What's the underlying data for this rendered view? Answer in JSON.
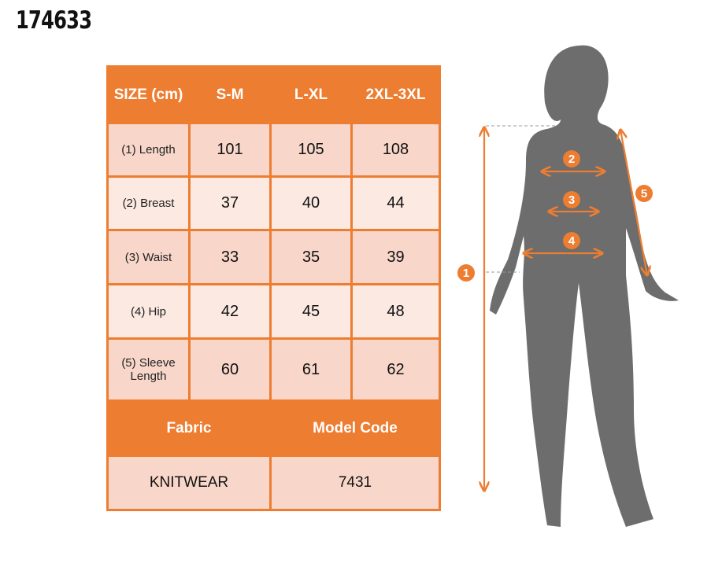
{
  "product_code": "174633",
  "table": {
    "headers": [
      "SIZE (cm)",
      "S-M",
      "L-XL",
      "2XL-3XL"
    ],
    "rows": [
      {
        "label": "(1) Length",
        "values": [
          "101",
          "105",
          "108"
        ]
      },
      {
        "label": "(2) Breast",
        "values": [
          "37",
          "40",
          "44"
        ]
      },
      {
        "label": "(3) Waist",
        "values": [
          "33",
          "35",
          "39"
        ]
      },
      {
        "label": "(4) Hip",
        "values": [
          "42",
          "45",
          "48"
        ]
      },
      {
        "label": "(5) Sleeve Length",
        "values": [
          "60",
          "61",
          "62"
        ]
      }
    ],
    "footer_headers": [
      "Fabric",
      "Model Code"
    ],
    "footer_values": [
      "KNITWEAR",
      "7431"
    ]
  },
  "figure": {
    "markers": [
      "1",
      "2",
      "3",
      "4",
      "5"
    ]
  },
  "colors": {
    "accent": "#ed7d31",
    "row_dark": "#f8d7ca",
    "row_light": "#fbe9e2",
    "silhouette": "#6d6d6d"
  }
}
